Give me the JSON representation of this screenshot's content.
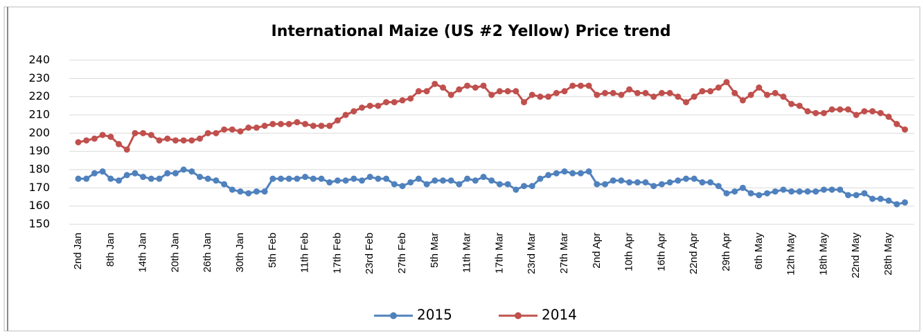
{
  "chart_data": {
    "type": "line",
    "title": "International Maize (US #2 Yellow) Price trend",
    "categories": [
      "2nd Jan",
      null,
      null,
      null,
      "8th Jan",
      null,
      null,
      null,
      "14th Jan",
      null,
      null,
      null,
      "20th Jan",
      null,
      null,
      null,
      "26th Jan",
      null,
      null,
      null,
      "30th Jan",
      null,
      null,
      null,
      "5th Feb",
      null,
      null,
      null,
      "11th Feb",
      null,
      null,
      null,
      "17th Feb",
      null,
      null,
      null,
      "23rd Feb",
      null,
      null,
      null,
      "27th Feb",
      null,
      null,
      null,
      "5th Mar",
      null,
      null,
      null,
      "11th Mar",
      null,
      null,
      null,
      "17th Mar",
      null,
      null,
      null,
      "23rd Mar",
      null,
      null,
      null,
      "27th Mar",
      null,
      null,
      null,
      "2nd Apr",
      null,
      null,
      null,
      "10th Apr",
      null,
      null,
      null,
      "16th Apr",
      null,
      null,
      null,
      "22nd Apr",
      null,
      null,
      null,
      "29th Apr",
      null,
      null,
      null,
      "6th May",
      null,
      null,
      null,
      "12th May",
      null,
      null,
      null,
      "18th May",
      null,
      null,
      null,
      "22nd May",
      null,
      null,
      null,
      "28th May",
      null,
      null
    ],
    "series": [
      {
        "name": "2015",
        "color": "#4f81bd",
        "values": [
          175,
          175,
          178,
          179,
          175,
          174,
          177,
          178,
          176,
          175,
          175,
          178,
          178,
          180,
          179,
          176,
          175,
          174,
          172,
          169,
          168,
          167,
          168,
          168,
          175,
          175,
          175,
          175,
          176,
          175,
          175,
          173,
          174,
          174,
          175,
          174,
          176,
          175,
          175,
          172,
          171,
          173,
          175,
          172,
          174,
          174,
          174,
          172,
          175,
          174,
          176,
          174,
          172,
          172,
          169,
          171,
          171,
          175,
          177,
          178,
          179,
          178,
          178,
          179,
          172,
          172,
          174,
          174,
          173,
          173,
          173,
          171,
          172,
          173,
          174,
          175,
          175,
          173,
          173,
          171,
          167,
          168,
          170,
          167,
          166,
          167,
          168,
          169,
          168,
          168,
          168,
          168,
          169,
          169,
          169,
          166,
          166,
          167,
          164,
          164,
          163,
          161,
          162
        ]
      },
      {
        "name": "2014",
        "color": "#c0504d",
        "values": [
          195,
          196,
          197,
          199,
          198,
          194,
          191,
          200,
          200,
          199,
          196,
          197,
          196,
          196,
          196,
          197,
          200,
          200,
          202,
          202,
          201,
          203,
          203,
          204,
          205,
          205,
          205,
          206,
          205,
          204,
          204,
          204,
          207,
          210,
          212,
          214,
          215,
          215,
          217,
          217,
          218,
          219,
          223,
          223,
          227,
          225,
          221,
          224,
          226,
          225,
          226,
          221,
          223,
          223,
          223,
          217,
          221,
          220,
          220,
          222,
          223,
          226,
          226,
          226,
          221,
          222,
          222,
          221,
          224,
          222,
          222,
          220,
          222,
          222,
          220,
          217,
          220,
          223,
          223,
          225,
          228,
          222,
          218,
          221,
          225,
          221,
          222,
          220,
          216,
          215,
          212,
          211,
          211,
          213,
          213,
          213,
          210,
          212,
          212,
          211,
          209,
          205,
          202
        ]
      }
    ],
    "ylim": [
      150,
      240
    ],
    "yticks": [
      150,
      160,
      170,
      180,
      190,
      200,
      210,
      220,
      230,
      240
    ],
    "grid": true,
    "legend": "bottom"
  }
}
